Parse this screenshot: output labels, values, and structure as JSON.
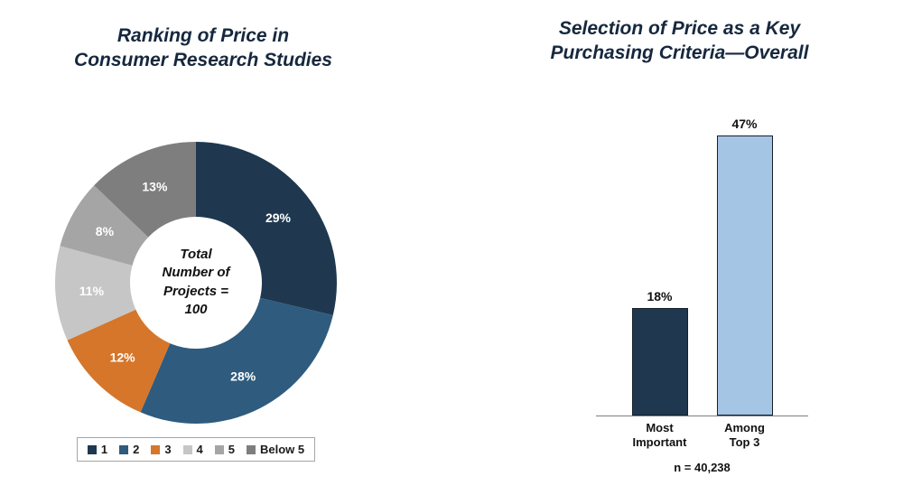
{
  "chart_data": [
    {
      "type": "pie",
      "donut": true,
      "title": "Ranking of Price in\nConsumer Research Studies",
      "center_text": "Total\nNumber of\nProjects =\n100",
      "categories": [
        "1",
        "2",
        "3",
        "4",
        "5",
        "Below 5"
      ],
      "values": [
        29,
        28,
        12,
        11,
        8,
        13
      ],
      "value_labels": [
        "29%",
        "28%",
        "12%",
        "11%",
        "8%",
        "13%"
      ],
      "colors": [
        "#1F3850",
        "#2E5B7E",
        "#D5762B",
        "#C6C6C6",
        "#A5A5A5",
        "#7E7E7E"
      ],
      "label_color": "#FFFFFF",
      "legend_position": "bottom",
      "start_angle_deg": 0,
      "direction": "clockwise"
    },
    {
      "type": "bar",
      "title": "Selection of Price as a Key\nPurchasing Criteria—Overall",
      "categories": [
        "Most\nImportant",
        "Among\nTop 3"
      ],
      "values": [
        18,
        47
      ],
      "value_labels": [
        "18%",
        "47%"
      ],
      "colors": [
        "#1F3850",
        "#A5C5E5"
      ],
      "bar_border_color": "#17202A",
      "note": "n = 40,238",
      "ylim": [
        0,
        50
      ],
      "grid": false,
      "legend": false
    }
  ]
}
